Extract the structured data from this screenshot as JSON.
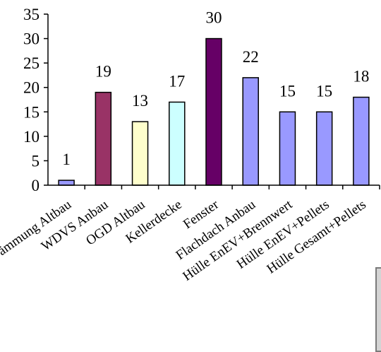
{
  "chart_data": {
    "type": "bar",
    "categories": [
      "Dämmung Altbau",
      "WDVS Anbau",
      "OGD Altbau",
      "Kellerdecke",
      "Fenster",
      "Flachdach Anbau",
      "Hülle EnEV+Brennwert",
      "Hülle EnEV+Pellets",
      "Hülle Gesamt+Pellets"
    ],
    "values": [
      1,
      19,
      13,
      17,
      30,
      22,
      15,
      15,
      18
    ],
    "colors": [
      "#9999ff",
      "#993366",
      "#ffffcc",
      "#ccffff",
      "#660066",
      "#9999ff",
      "#9999ff",
      "#9999ff",
      "#9999ff"
    ],
    "ylim": [
      0,
      35
    ],
    "yticks": [
      0,
      5,
      10,
      15,
      20,
      25,
      30,
      35
    ],
    "title": "",
    "xlabel": "",
    "ylabel": "",
    "grid": false,
    "legend": false
  }
}
